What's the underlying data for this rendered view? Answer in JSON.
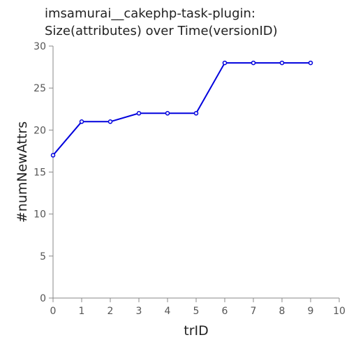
{
  "chart_data": {
    "type": "line",
    "title": [
      "imsamurai__cakephp-task-plugin:",
      "Size(attributes) over Time(versionID)"
    ],
    "xlabel": "trID",
    "ylabel": "#numNewAttrs",
    "xlim": [
      0,
      10
    ],
    "ylim": [
      0,
      30
    ],
    "xticks": [
      0,
      1,
      2,
      3,
      4,
      5,
      6,
      7,
      8,
      9,
      10
    ],
    "yticks": [
      0,
      5,
      10,
      15,
      20,
      25,
      30
    ],
    "grid": false,
    "legend": "none",
    "series": [
      {
        "color": "#0000dd",
        "x": [
          0,
          1,
          2,
          3,
          4,
          5,
          6,
          7,
          8,
          9
        ],
        "y": [
          17,
          21,
          21,
          22,
          22,
          22,
          28,
          28,
          28,
          28
        ]
      }
    ]
  }
}
